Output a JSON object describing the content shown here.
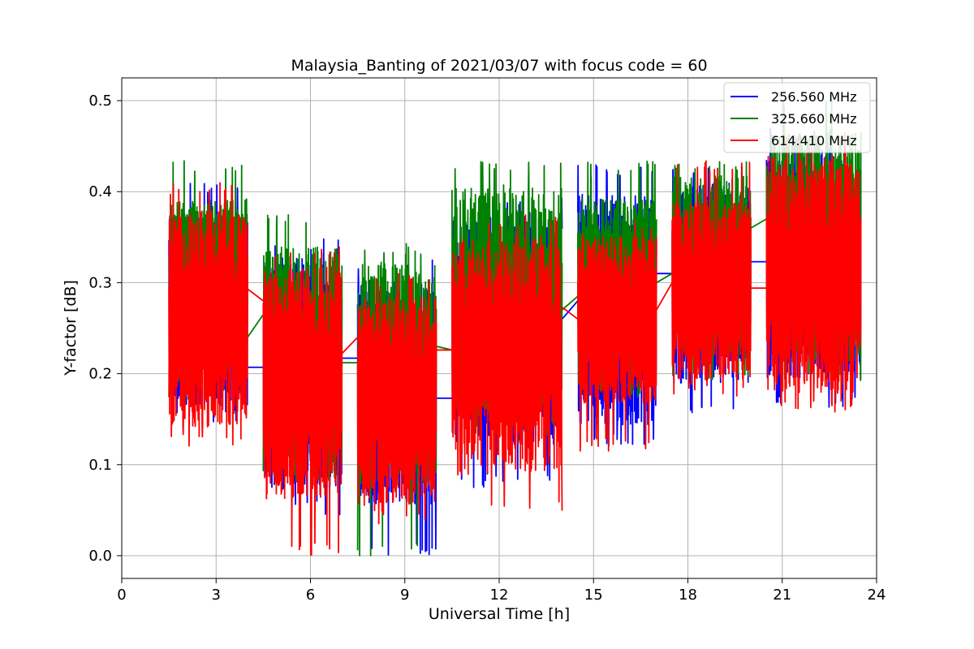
{
  "chart_data": {
    "type": "line",
    "title": "Malaysia_Banting of 2021/03/07 with focus code = 60",
    "xlabel": "Universal Time [h]",
    "ylabel": "Y-factor [dB]",
    "xlim": [
      0,
      24
    ],
    "ylim": [
      -0.025,
      0.525
    ],
    "xticks": [
      0,
      3,
      6,
      9,
      12,
      15,
      18,
      21,
      24
    ],
    "xtick_labels": [
      "0",
      "3",
      "6",
      "9",
      "12",
      "15",
      "18",
      "21",
      "24"
    ],
    "yticks": [
      0.0,
      0.1,
      0.2,
      0.3,
      0.4,
      0.5
    ],
    "ytick_labels": [
      "0.0",
      "0.1",
      "0.2",
      "0.3",
      "0.4",
      "0.5"
    ],
    "grid": true,
    "legend_position": "top-right",
    "segments": [
      {
        "start": 1.5,
        "end": 4.0
      },
      {
        "start": 4.5,
        "end": 7.0
      },
      {
        "start": 7.5,
        "end": 10.0
      },
      {
        "start": 10.5,
        "end": 14.0
      },
      {
        "start": 14.5,
        "end": 17.0
      },
      {
        "start": 17.5,
        "end": 20.0
      },
      {
        "start": 20.5,
        "end": 23.5
      }
    ],
    "series": [
      {
        "name": "256.560 MHz",
        "color": "#0000ff",
        "segment_stats": [
          {
            "mean": 0.27,
            "min": 0.145,
            "max": 0.41
          },
          {
            "mean": 0.2,
            "min": 0.045,
            "max": 0.35
          },
          {
            "mean": 0.18,
            "min": 0.0,
            "max": 0.325
          },
          {
            "mean": 0.25,
            "min": 0.075,
            "max": 0.4
          },
          {
            "mean": 0.27,
            "min": 0.12,
            "max": 0.43
          },
          {
            "mean": 0.3,
            "min": 0.155,
            "max": 0.43
          },
          {
            "mean": 0.32,
            "min": 0.16,
            "max": 0.47
          }
        ],
        "bridges": [
          {
            "x": [
              4.0,
              4.5
            ],
            "y": [
              0.207,
              0.207
            ]
          },
          {
            "x": [
              7.0,
              7.5
            ],
            "y": [
              0.217,
              0.217
            ]
          },
          {
            "x": [
              10.0,
              10.5
            ],
            "y": [
              0.173,
              0.173
            ]
          },
          {
            "x": [
              14.0,
              14.5
            ],
            "y": [
              0.26,
              0.28
            ]
          },
          {
            "x": [
              17.0,
              17.5
            ],
            "y": [
              0.31,
              0.31
            ]
          },
          {
            "x": [
              20.0,
              20.5
            ],
            "y": [
              0.323,
              0.323
            ]
          }
        ]
      },
      {
        "name": "325.660 MHz",
        "color": "#008000",
        "segment_stats": [
          {
            "mean": 0.29,
            "min": 0.17,
            "max": 0.435
          },
          {
            "mean": 0.22,
            "min": 0.08,
            "max": 0.375
          },
          {
            "mean": 0.2,
            "min": 0.0,
            "max": 0.345
          },
          {
            "mean": 0.28,
            "min": 0.13,
            "max": 0.435
          },
          {
            "mean": 0.29,
            "min": 0.17,
            "max": 0.435
          },
          {
            "mean": 0.32,
            "min": 0.19,
            "max": 0.435
          },
          {
            "mean": 0.34,
            "min": 0.19,
            "max": 0.5
          }
        ],
        "bridges": [
          {
            "x": [
              4.0,
              4.5
            ],
            "y": [
              0.24,
              0.265
            ]
          },
          {
            "x": [
              7.0,
              7.5
            ],
            "y": [
              0.212,
              0.212
            ]
          },
          {
            "x": [
              10.0,
              10.5
            ],
            "y": [
              0.23,
              0.226
            ]
          },
          {
            "x": [
              14.0,
              14.5
            ],
            "y": [
              0.27,
              0.285
            ]
          },
          {
            "x": [
              17.0,
              17.5
            ],
            "y": [
              0.3,
              0.31
            ]
          },
          {
            "x": [
              20.0,
              20.5
            ],
            "y": [
              0.36,
              0.37
            ]
          }
        ]
      },
      {
        "name": "614.410 MHz",
        "color": "#ff0000",
        "segment_stats": [
          {
            "mean": 0.26,
            "min": 0.12,
            "max": 0.41
          },
          {
            "mean": 0.19,
            "min": 0.0,
            "max": 0.34
          },
          {
            "mean": 0.17,
            "min": 0.035,
            "max": 0.31
          },
          {
            "mean": 0.22,
            "min": 0.045,
            "max": 0.375
          },
          {
            "mean": 0.26,
            "min": 0.115,
            "max": 0.37
          },
          {
            "mean": 0.29,
            "min": 0.175,
            "max": 0.435
          },
          {
            "mean": 0.31,
            "min": 0.155,
            "max": 0.47
          }
        ],
        "bridges": [
          {
            "x": [
              4.0,
              4.5
            ],
            "y": [
              0.293,
              0.28
            ]
          },
          {
            "x": [
              7.0,
              7.5
            ],
            "y": [
              0.222,
              0.24
            ]
          },
          {
            "x": [
              10.0,
              10.5
            ],
            "y": [
              0.226,
              0.226
            ]
          },
          {
            "x": [
              14.0,
              14.5
            ],
            "y": [
              0.273,
              0.26
            ]
          },
          {
            "x": [
              17.0,
              17.5
            ],
            "y": [
              0.27,
              0.3
            ]
          },
          {
            "x": [
              20.0,
              20.5
            ],
            "y": [
              0.294,
              0.294
            ]
          }
        ]
      }
    ]
  }
}
